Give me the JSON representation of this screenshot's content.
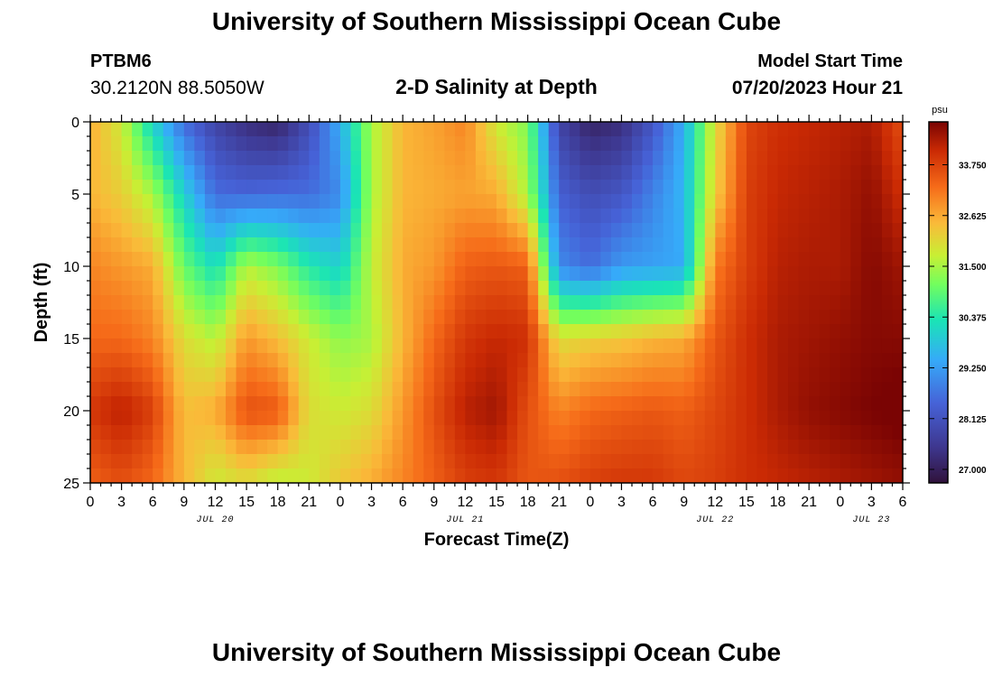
{
  "header": {
    "title": "University of Southern Mississippi Ocean Cube",
    "station_id": "PTBM6",
    "coordinates": "30.2120N  88.5050W",
    "plot_title": "2-D Salinity at Depth",
    "model_start_label": "Model Start Time",
    "model_start_value": "07/20/2023 Hour 21"
  },
  "footer": {
    "title": "University of Southern Mississippi Ocean Cube"
  },
  "chart_data": {
    "type": "heatmap",
    "title": "2-D Salinity at Depth",
    "xlabel": "Forecast Time(Z)",
    "ylabel": "Depth (ft)",
    "x_range_hours": [
      0,
      78
    ],
    "ylim": [
      0,
      25
    ],
    "y_ticks": [
      0,
      5,
      10,
      15,
      20,
      25
    ],
    "x_tick_labels": [
      "0",
      "3",
      "6",
      "9",
      "12",
      "15",
      "18",
      "21",
      "0",
      "3",
      "6",
      "9",
      "12",
      "15",
      "18",
      "21",
      "0",
      "3",
      "6",
      "9",
      "12",
      "15",
      "18",
      "21",
      "0",
      "3",
      "6"
    ],
    "date_labels": [
      {
        "label": "JUL 20",
        "hour": 12
      },
      {
        "label": "JUL 21",
        "hour": 36
      },
      {
        "label": "JUL 22",
        "hour": 60
      },
      {
        "label": "JUL 23",
        "hour": 75
      }
    ],
    "colorbar": {
      "unit": "psu",
      "min": 26.7,
      "max": 34.7,
      "ticks": [
        "27.000",
        "28.125",
        "29.250",
        "30.375",
        "31.500",
        "32.625",
        "33.750"
      ],
      "tick_values": [
        27.0,
        28.125,
        29.25,
        30.375,
        31.5,
        32.625,
        33.75
      ]
    },
    "depths_ft": [
      0,
      5,
      10,
      15,
      20,
      25
    ],
    "rows_description": "salinity (psu) at each depth row, sampled every 3 forecast hours (27 columns, hour 0..78)",
    "salinity": [
      [
        32.6,
        31.8,
        30.0,
        28.6,
        27.8,
        27.3,
        27.1,
        28.0,
        29.5,
        31.5,
        32.5,
        32.7,
        33.0,
        31.8,
        31.2,
        27.8,
        27.1,
        27.3,
        28.2,
        29.5,
        32.0,
        33.7,
        34.0,
        34.1,
        34.2,
        34.3,
        33.6
      ],
      [
        32.5,
        32.2,
        31.5,
        30.0,
        28.6,
        28.5,
        28.6,
        28.6,
        29.0,
        31.5,
        32.5,
        32.6,
        32.7,
        32.6,
        31.5,
        28.4,
        28.0,
        28.2,
        28.9,
        29.6,
        32.2,
        33.8,
        34.1,
        34.2,
        34.3,
        34.5,
        34.0
      ],
      [
        33.0,
        32.8,
        32.6,
        31.0,
        30.2,
        31.6,
        31.2,
        30.4,
        30.0,
        31.7,
        32.6,
        32.8,
        33.4,
        33.5,
        33.4,
        29.0,
        28.6,
        29.2,
        29.3,
        29.4,
        33.1,
        33.8,
        34.2,
        34.3,
        34.3,
        34.6,
        34.4
      ],
      [
        33.3,
        33.3,
        33.0,
        32.0,
        31.6,
        32.8,
        32.4,
        31.8,
        31.3,
        31.5,
        32.5,
        33.3,
        33.9,
        34.1,
        34.0,
        32.0,
        32.2,
        32.3,
        32.5,
        32.6,
        33.5,
        34.0,
        34.3,
        34.4,
        34.5,
        34.6,
        34.6
      ],
      [
        33.9,
        34.2,
        33.8,
        32.4,
        32.6,
        33.6,
        33.5,
        32.0,
        31.8,
        32.0,
        32.8,
        33.6,
        34.2,
        34.4,
        33.6,
        33.0,
        33.3,
        33.4,
        33.5,
        33.4,
        33.7,
        34.0,
        34.3,
        34.5,
        34.6,
        34.7,
        34.8
      ],
      [
        33.4,
        33.6,
        33.3,
        32.5,
        31.8,
        32.0,
        31.6,
        31.8,
        32.3,
        32.6,
        33.0,
        33.4,
        33.8,
        33.9,
        33.5,
        33.6,
        33.8,
        33.9,
        33.9,
        33.7,
        33.8,
        34.0,
        34.1,
        34.2,
        34.3,
        34.4,
        34.5
      ]
    ]
  }
}
